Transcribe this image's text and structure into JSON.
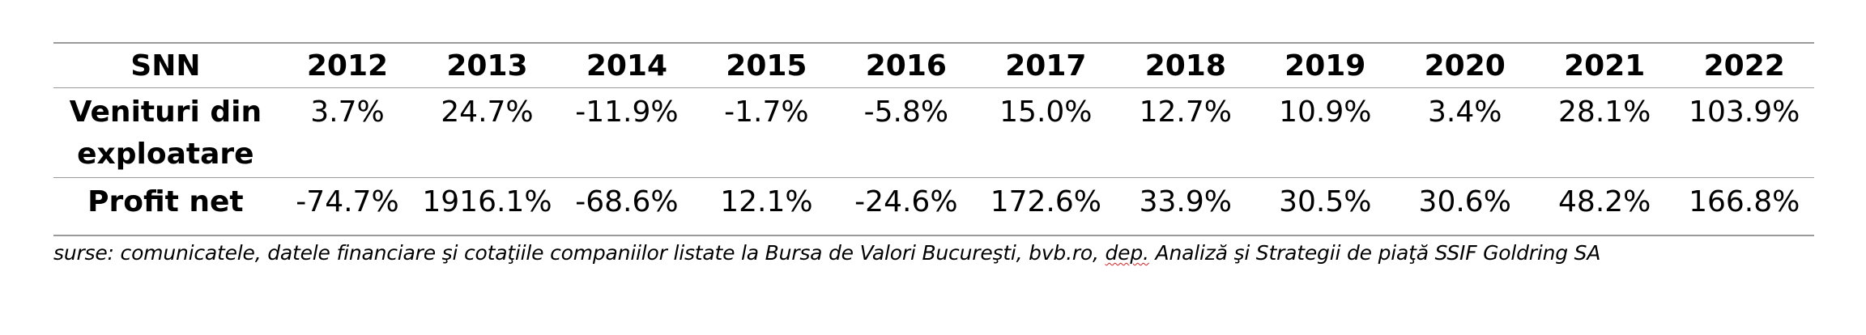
{
  "table": {
    "corner_label": "SNN",
    "years": [
      "2012",
      "2013",
      "2014",
      "2015",
      "2016",
      "2017",
      "2018",
      "2019",
      "2020",
      "2021",
      "2022"
    ],
    "rows": [
      {
        "label_line1": "Venituri din",
        "label_line2": "exploatare",
        "values": [
          "3.7%",
          "24.7%",
          "-11.9%",
          "-1.7%",
          "-5.8%",
          "15.0%",
          "12.7%",
          "10.9%",
          "3.4%",
          "28.1%",
          "103.9%"
        ]
      },
      {
        "label_line1": "Profit net",
        "values": [
          "-74.7%",
          "1916.1%",
          "-68.6%",
          "12.1%",
          "-24.6%",
          "172.6%",
          "33.9%",
          "30.5%",
          "30.6%",
          "48.2%",
          "166.8%"
        ]
      }
    ]
  },
  "source": {
    "before": "surse: comunicatele, datele financiare şi cotaţiile companiilor listate la Bursa de Valori Bucureşti, bvb.ro, ",
    "flagged": "dep.",
    "after": " Analiză şi Strategii de piaţă SSIF Goldring SA"
  }
}
